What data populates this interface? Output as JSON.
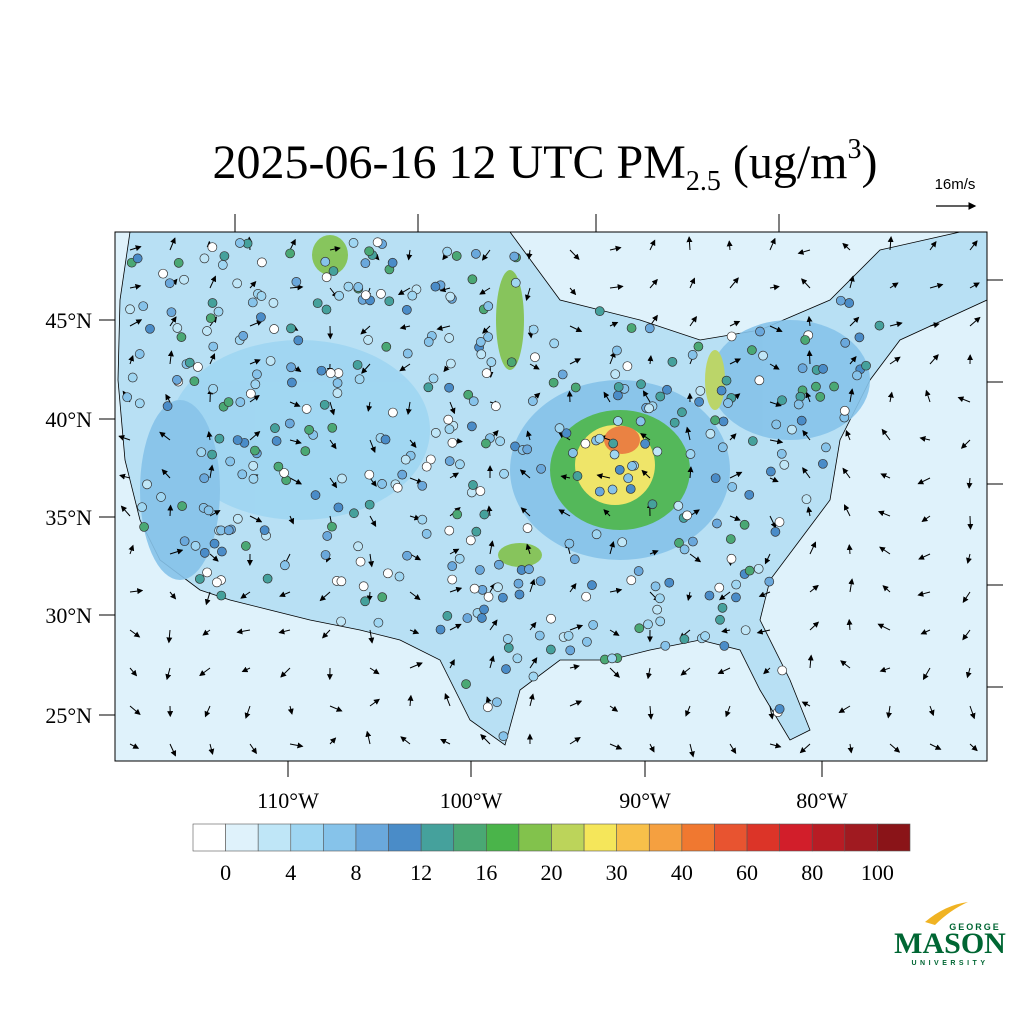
{
  "title": {
    "main": "2025-06-16 12 UTC PM",
    "subscript": "2.5",
    "unit_open": " (ug/m",
    "superscript": "3",
    "unit_close": ")"
  },
  "vector_reference": "16m/s",
  "lat_labels": [
    "45°N",
    "40°N",
    "35°N",
    "30°N",
    "25°N"
  ],
  "lon_labels": [
    "110°W",
    "100°W",
    "90°W",
    "80°W"
  ],
  "colorbar": {
    "labels": [
      0,
      4,
      8,
      12,
      16,
      20,
      30,
      40,
      60,
      80,
      100
    ],
    "colors": [
      "#ffffff",
      "#dff2fb",
      "#bfe6f7",
      "#9fd6f2",
      "#86c3ea",
      "#6aa8dc",
      "#4a8cc8",
      "#45a19c",
      "#4aa874",
      "#4ab44a",
      "#82c24c",
      "#bcd45a",
      "#f5e65a",
      "#f8c04a",
      "#f5a040",
      "#f07830",
      "#e85430",
      "#dc3428",
      "#d21e2a",
      "#b81c24",
      "#a01a20",
      "#8a1418"
    ]
  },
  "logo": {
    "top": "GEORGE",
    "main": "MASON",
    "bottom": "UNIVERSITY"
  }
}
